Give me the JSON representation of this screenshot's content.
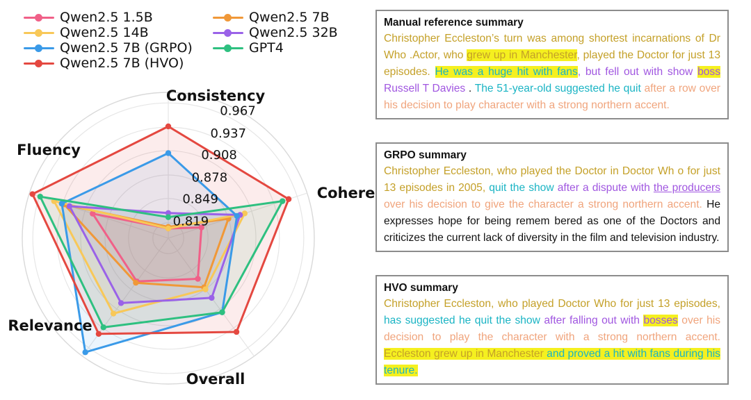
{
  "chart_data": {
    "type": "radar",
    "axes": [
      "Consistency",
      "Coherence",
      "Overall",
      "Relevance",
      "Fluency"
    ],
    "rlabels": [
      "0.819",
      "0.849",
      "0.878",
      "0.908",
      "0.937",
      "0.967"
    ],
    "rlim": [
      0.8,
      0.98
    ],
    "legend_placement": "top-left",
    "series": [
      {
        "name": "Qwen2.5 1.5B",
        "color": "#f06088",
        "values": [
          0.812,
          0.843,
          0.862,
          0.866,
          0.898
        ]
      },
      {
        "name": "Qwen2.5 7B",
        "color": "#f09838",
        "values": [
          0.814,
          0.878,
          0.875,
          0.868,
          0.935
        ]
      },
      {
        "name": "Qwen2.5 14B",
        "color": "#f8c858",
        "values": [
          0.812,
          0.899,
          0.878,
          0.915,
          0.948
        ]
      },
      {
        "name": "Qwen2.5 32B",
        "color": "#9a62e8",
        "values": [
          0.831,
          0.893,
          0.891,
          0.899,
          0.928
        ]
      },
      {
        "name": "Qwen2.5 7B (GRPO)",
        "color": "#3a9ae8",
        "values": [
          0.905,
          0.889,
          0.913,
          0.974,
          0.938
        ]
      },
      {
        "name": "GPT4",
        "color": "#2ec080",
        "values": [
          0.826,
          0.948,
          0.913,
          0.936,
          0.966
        ]
      },
      {
        "name": "Qwen2.5 7B (HVO)",
        "color": "#e44840",
        "values": [
          0.938,
          0.956,
          0.943,
          0.946,
          0.976
        ]
      }
    ]
  },
  "legend": [
    {
      "label": "Qwen2.5 1.5B",
      "color": "#f06088"
    },
    {
      "label": "Qwen2.5 7B",
      "color": "#f09838"
    },
    {
      "label": "Qwen2.5 14B",
      "color": "#f8c858"
    },
    {
      "label": "Qwen2.5 32B",
      "color": "#9a62e8"
    },
    {
      "label": "Qwen2.5 7B (GRPO)",
      "color": "#3a9ae8"
    },
    {
      "label": "GPT4",
      "color": "#2ec080"
    },
    {
      "label": "Qwen2.5 7B (HVO)",
      "color": "#e44840"
    }
  ],
  "colors": {
    "olive": "#c4a028",
    "teal": "#1ab4c4",
    "purple": "#a056e0",
    "peach": "#f0a47c",
    "highlight": "#f5f01f",
    "box_border": "#8c8c8c"
  },
  "summaries": [
    {
      "title": "Manual reference summary",
      "segments": [
        {
          "text": "Christopher Eccleston’s turn was among shortest incarnations of Dr Who .Actor, who ",
          "color": "olive"
        },
        {
          "text": "grew up in Manchester",
          "color": "olive",
          "highlight": true
        },
        {
          "text": ", played the Doctor for just 13 episodes. ",
          "color": "olive"
        },
        {
          "text": "He was a huge hit with fans",
          "color": "teal",
          "highlight": true
        },
        {
          "text": ", but fell out with show ",
          "color": "purple"
        },
        {
          "text": "boss",
          "color": "purple",
          "highlight": true
        },
        {
          "text": " Russell T Davies ",
          "color": "purple"
        },
        {
          "text": ". ",
          "color": "black"
        },
        {
          "text": "The 51-year-old suggested he quit ",
          "color": "teal"
        },
        {
          "text": "after a row over his decision to play character with a strong northern accent.",
          "color": "peach"
        }
      ]
    },
    {
      "title": "GRPO summary",
      "segments": [
        {
          "text": "Christopher Eccleston, who played the Doctor in Doctor Wh o for just 13 episodes in 2005, ",
          "color": "olive"
        },
        {
          "text": "quit the show ",
          "color": "teal"
        },
        {
          "text": "after a dispute with ",
          "color": "purple"
        },
        {
          "text": "the producers ",
          "color": "purple",
          "underline": true
        },
        {
          "text": "over his decision to give the character a strong northern accent. ",
          "color": "peach"
        },
        {
          "text": "He expresses hope for being remem bered as one of the Doctors and criticizes the current lack of diversity in the film and television industry.",
          "color": "black"
        }
      ]
    },
    {
      "title": "HVO summary",
      "segments": [
        {
          "text": "Christopher Eccleston, who played Doctor Who for just 13 episodes, ",
          "color": "olive"
        },
        {
          "text": "has suggested he quit the show ",
          "color": "teal"
        },
        {
          "text": "after falling out with ",
          "color": "purple"
        },
        {
          "text": "bosses",
          "color": "purple",
          "highlight": true
        },
        {
          "text": " over his decision to play the character with a strong northern accent. ",
          "color": "peach"
        },
        {
          "text": "Eccleston grew up in Manchester",
          "color": "olive",
          "highlight": true
        },
        {
          "text": " and proved a hit with fans during his tenure.",
          "color": "teal",
          "highlight": true
        }
      ]
    }
  ]
}
